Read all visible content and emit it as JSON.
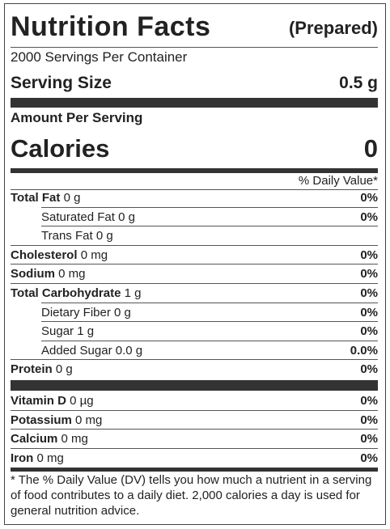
{
  "header": {
    "title": "Nutrition Facts",
    "state": "(Prepared)",
    "servings": "2000 Servings Per Container",
    "serving_size_label": "Serving Size",
    "serving_size": "0.5 g"
  },
  "amount_per_serving": "Amount Per Serving",
  "calories": {
    "label": "Calories",
    "value": "0"
  },
  "daily_value_header": "% Daily Value*",
  "nutrients": [
    {
      "name": "Total Fat",
      "amount": "0 g",
      "dv": "0%"
    },
    {
      "name": "Saturated Fat",
      "amount": "0 g",
      "dv": "0%"
    },
    {
      "name": "Trans Fat",
      "amount": "0 g"
    },
    {
      "name": "Cholesterol",
      "amount": "0 mg",
      "dv": "0%"
    },
    {
      "name": "Sodium",
      "amount": "0 mg",
      "dv": "0%"
    },
    {
      "name": "Total Carbohydrate",
      "amount": "1 g",
      "dv": "0%"
    },
    {
      "name": "Dietary Fiber",
      "amount": "0 g",
      "dv": "0%"
    },
    {
      "name": "Sugar",
      "amount": "1 g",
      "dv": "0%"
    },
    {
      "name": "Added Sugar",
      "amount": "0.0 g",
      "dv": "0.0%"
    },
    {
      "name": "Protein",
      "amount": "0 g",
      "dv": "0%"
    }
  ],
  "vitamins": [
    {
      "name": "Vitamin D",
      "amount": "0 µg",
      "dv": "0%"
    },
    {
      "name": "Potassium",
      "amount": "0 mg",
      "dv": "0%"
    },
    {
      "name": "Calcium",
      "amount": "0 mg",
      "dv": "0%"
    },
    {
      "name": "Iron",
      "amount": "0 mg",
      "dv": "0%"
    }
  ],
  "footnote": "* The % Daily Value (DV) tells you how much a nutrient in a serving of food contributes to a daily diet. 2,000 calories a day is used for general nutrition advice."
}
